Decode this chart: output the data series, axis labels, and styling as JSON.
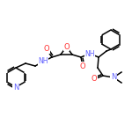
{
  "bg_color": "#ffffff",
  "atom_colors": {
    "N": "#6060ff",
    "O": "#ff3030"
  },
  "bond_color": "#000000",
  "line_width": 1.1,
  "fig_size": [
    1.5,
    1.5
  ],
  "dpi": 100
}
